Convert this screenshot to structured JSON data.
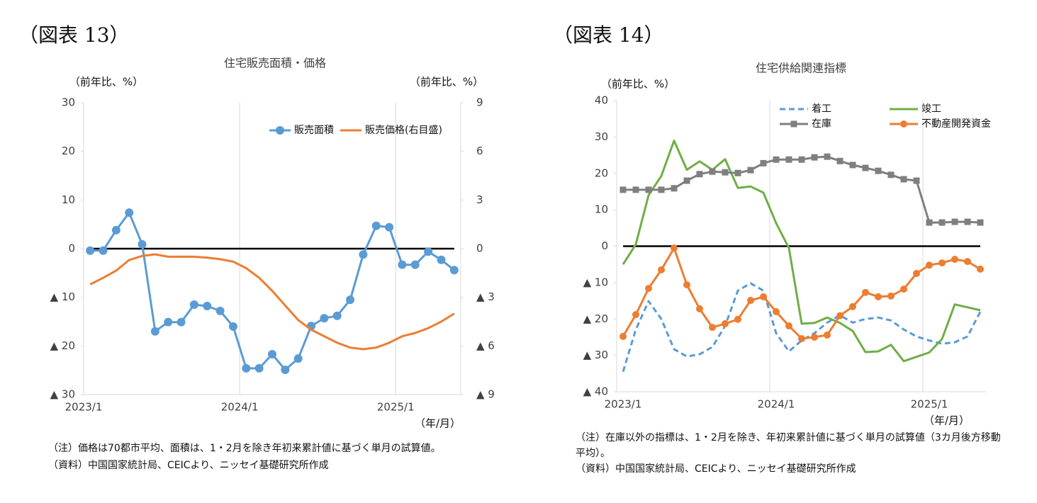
{
  "chart_data": [
    {
      "type": "line",
      "figure_label": "（図表 13）",
      "title": "住宅販売面積・価格",
      "y_label": "（前年比、%）",
      "y2_label": "（前年比、%）",
      "x_label": "（年/月）",
      "categories": [
        "2023/1",
        null,
        null,
        null,
        null,
        null,
        null,
        null,
        null,
        null,
        null,
        null,
        "2024/1",
        null,
        null,
        null,
        null,
        null,
        null,
        null,
        null,
        null,
        null,
        null,
        "2025/1",
        null,
        null,
        null,
        null
      ],
      "series": [
        {
          "name": "販売面積",
          "color": "#5b9bd5",
          "marker": "circle",
          "axis": "y",
          "values": [
            -0.4,
            -0.4,
            3.8,
            7.4,
            0.9,
            -17,
            -15.1,
            -15.1,
            -11.5,
            -11.8,
            -12.8,
            -16,
            -24.6,
            -24.6,
            -21.7,
            -24.9,
            -22.6,
            -15.9,
            -14.3,
            -13.8,
            -10.5,
            -1.2,
            4.7,
            4.4,
            -3.3,
            -3.3,
            -0.6,
            -2.3,
            -4.4
          ]
        },
        {
          "name": "販売価格(右目盛)",
          "color": "#ed7d31",
          "axis": "y2",
          "values": [
            -2.2,
            -1.8,
            -1.35,
            -0.7,
            -0.45,
            -0.35,
            -0.5,
            -0.5,
            -0.5,
            -0.55,
            -0.65,
            -0.8,
            -1.2,
            -1.8,
            -2.6,
            -3.5,
            -4.4,
            -5.0,
            -5.4,
            -5.8,
            -6.1,
            -6.2,
            -6.1,
            -5.8,
            -5.4,
            -5.2,
            -4.9,
            -4.5,
            -4.0
          ]
        }
      ],
      "ylim": [
        -30,
        30
      ],
      "yticks": [
        30,
        20,
        10,
        0,
        {
          "value": -10,
          "label": "▲ 10"
        },
        {
          "value": -20,
          "label": "▲ 20"
        },
        {
          "value": -30,
          "label": "▲ 30"
        }
      ],
      "y2lim": [
        -9,
        9
      ],
      "y2ticks": [
        9,
        6,
        3,
        0,
        {
          "value": -3,
          "label": "▲ 3"
        },
        {
          "value": -6,
          "label": "▲ 6"
        },
        {
          "value": -9,
          "label": "▲ 9"
        }
      ],
      "notes": [
        "（注）価格は70都市平均、面積は、1・2月を除き年初来累計値に基づく単月の試算値。",
        "（資料）中国国家統計局、CEICより、ニッセイ基礎研究所作成"
      ]
    },
    {
      "type": "line",
      "figure_label": "（図表 14）",
      "title": "住宅供給関連指標",
      "y_label": "（前年比、%）",
      "x_label": "（年/月）",
      "categories": [
        "2023/1",
        null,
        null,
        null,
        null,
        null,
        null,
        null,
        null,
        null,
        null,
        null,
        "2024/1",
        null,
        null,
        null,
        null,
        null,
        null,
        null,
        null,
        null,
        null,
        null,
        "2025/1",
        null,
        null,
        null,
        null
      ],
      "series": [
        {
          "name": "着工",
          "color": "#5b9bd5",
          "dash": true,
          "values": [
            -34.5,
            -22.9,
            -15.1,
            -20,
            -28.3,
            -30.3,
            -29.7,
            -27.7,
            -21.9,
            -12.2,
            -10.2,
            -12.2,
            -23.9,
            -28.9,
            -25.9,
            -23.9,
            -21,
            -19,
            -21,
            -20,
            -19.6,
            -20.4,
            -22.9,
            -24.8,
            -25.9,
            -26.8,
            -26.4,
            -24.8,
            -18
          ]
        },
        {
          "name": "竣工",
          "color": "#70ad47",
          "values": [
            -5,
            0.5,
            14,
            19.3,
            29,
            21,
            23.3,
            21,
            23.9,
            16,
            16.4,
            14.7,
            6.3,
            -0.5,
            -21.3,
            -21.1,
            -19.6,
            -21.1,
            -23.3,
            -29.1,
            -28.9,
            -27.1,
            -31.6,
            -30.4,
            -29.2,
            -25.5,
            -16,
            -16.8,
            -17.6
          ]
        },
        {
          "name": "在庫",
          "color": "#7f7f7f",
          "marker": "square",
          "values": [
            15.5,
            15.5,
            15.5,
            15.5,
            15.9,
            18,
            19.8,
            20.5,
            20.3,
            20.1,
            20.9,
            22.8,
            23.8,
            23.8,
            23.8,
            24.4,
            24.6,
            23.4,
            22.3,
            21.5,
            20.7,
            19.6,
            18.4,
            18,
            6.5,
            6.5,
            6.7,
            6.7,
            6.5
          ]
        },
        {
          "name": "不動産開発資金",
          "color": "#ed7d31",
          "marker": "circle",
          "values": [
            -24.8,
            -18.8,
            -11.6,
            -6.5,
            -0.5,
            -10.6,
            -17.2,
            -22.3,
            -21.3,
            -20.1,
            -14.9,
            -13.9,
            -18,
            -21.9,
            -25.4,
            -25,
            -24.4,
            -19.1,
            -16.6,
            -12.7,
            -13.9,
            -13.7,
            -11.8,
            -7.5,
            -5.2,
            -4.6,
            -3.6,
            -4.2,
            -6.3
          ]
        }
      ],
      "ylim": [
        -40,
        40
      ],
      "yticks": [
        40,
        30,
        20,
        10,
        0,
        {
          "value": -10,
          "label": "▲ 10"
        },
        {
          "value": -20,
          "label": "▲ 20"
        },
        {
          "value": -30,
          "label": "▲ 30"
        },
        {
          "value": -40,
          "label": "▲ 40"
        }
      ],
      "notes": [
        "（注）在庫以外の指標は、1・2月を除き、年初来累計値に基づく単月の試算値（3カ月後方移動平均）。",
        "（資料）中国国家統計局、CEICより、ニッセイ基礎研究所作成"
      ]
    }
  ]
}
